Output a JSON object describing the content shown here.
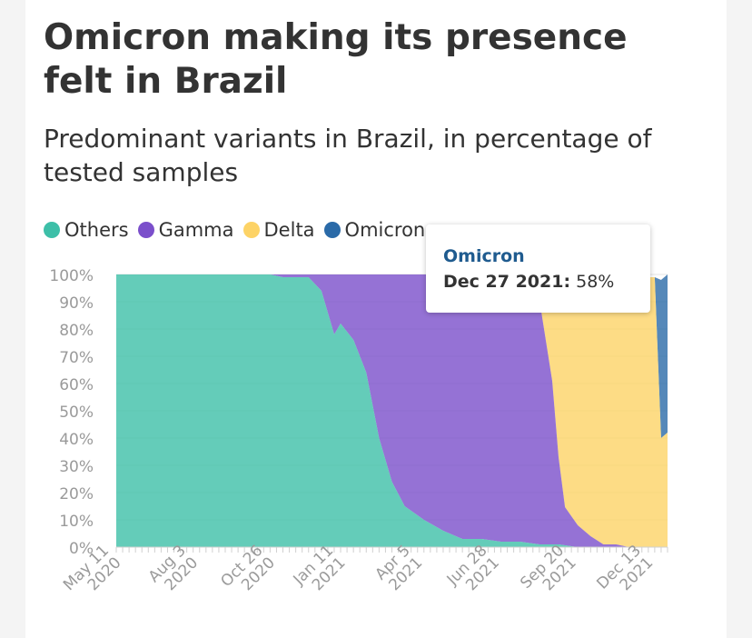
{
  "chart_data": {
    "type": "area",
    "stacking": "percent",
    "title": "Omicron making its presence felt in Brazil",
    "subtitle": "Predominant variants in Brazil, in percentage of tested samples",
    "x_tick_labels": [
      [
        "May 11",
        "2020"
      ],
      [
        "Aug 3",
        "2020"
      ],
      [
        "Oct 26",
        "2020"
      ],
      [
        "Jan 11",
        "2021"
      ],
      [
        "Apr 5",
        "2021"
      ],
      [
        "Jun 28",
        "2021"
      ],
      [
        "Sep 20",
        "2021"
      ],
      [
        "Dec 13",
        "2021"
      ]
    ],
    "x_tick_weeks": [
      0,
      12,
      24,
      35,
      47,
      59,
      71,
      83
    ],
    "y_tick_labels": [
      "0%",
      "10%",
      "20%",
      "30%",
      "40%",
      "50%",
      "60%",
      "70%",
      "80%",
      "90%",
      "100%"
    ],
    "ylim": [
      0,
      100
    ],
    "grid": true,
    "legend": "top-left",
    "series": [
      {
        "name": "Others",
        "color": "#3dbfa8",
        "points": [
          [
            0,
            100
          ],
          [
            24,
            100
          ],
          [
            26,
            99
          ],
          [
            30,
            99
          ],
          [
            32,
            94
          ],
          [
            34,
            78
          ],
          [
            35,
            82
          ],
          [
            37,
            76
          ],
          [
            39,
            64
          ],
          [
            41,
            40
          ],
          [
            43,
            24
          ],
          [
            45,
            15
          ],
          [
            48,
            10
          ],
          [
            51,
            6
          ],
          [
            54,
            3
          ],
          [
            57,
            3
          ],
          [
            60,
            2
          ],
          [
            63,
            2
          ],
          [
            66,
            1
          ],
          [
            69,
            1
          ],
          [
            72,
            0
          ],
          [
            86,
            0
          ]
        ]
      },
      {
        "name": "Gamma",
        "color": "#7b4fcb",
        "points": [
          [
            0,
            0
          ],
          [
            24,
            0
          ],
          [
            26,
            1
          ],
          [
            30,
            1
          ],
          [
            32,
            6
          ],
          [
            34,
            22
          ],
          [
            35,
            18
          ],
          [
            37,
            24
          ],
          [
            39,
            36
          ],
          [
            41,
            60
          ],
          [
            43,
            76
          ],
          [
            45,
            85
          ],
          [
            48,
            90
          ],
          [
            51,
            94
          ],
          [
            54,
            96
          ],
          [
            57,
            96
          ],
          [
            60,
            97
          ],
          [
            63,
            97
          ],
          [
            65,
            96
          ],
          [
            66,
            90
          ],
          [
            68,
            60
          ],
          [
            69,
            32
          ],
          [
            70,
            14
          ],
          [
            72,
            8
          ],
          [
            74,
            4
          ],
          [
            76,
            1
          ],
          [
            78,
            1
          ],
          [
            80,
            0
          ],
          [
            86,
            0
          ]
        ]
      },
      {
        "name": "Delta",
        "color": "#fdd366",
        "points": [
          [
            0,
            0
          ],
          [
            54,
            0
          ],
          [
            57,
            0
          ],
          [
            63,
            0
          ],
          [
            64,
            1
          ],
          [
            65,
            3
          ],
          [
            66,
            9
          ],
          [
            68,
            39
          ],
          [
            69,
            67
          ],
          [
            70,
            85
          ],
          [
            72,
            92
          ],
          [
            74,
            96
          ],
          [
            76,
            97
          ],
          [
            78,
            98
          ],
          [
            80,
            99
          ],
          [
            82,
            99
          ],
          [
            84,
            99
          ],
          [
            85,
            40
          ],
          [
            86,
            42
          ]
        ]
      },
      {
        "name": "Omicron",
        "color": "#2a6aa8",
        "points": [
          [
            0,
            0
          ],
          [
            84,
            0
          ],
          [
            85,
            58
          ],
          [
            86,
            58
          ]
        ]
      }
    ],
    "tooltip": {
      "series": "Omicron",
      "date": "Dec 27 2021:",
      "value": "58%"
    }
  }
}
